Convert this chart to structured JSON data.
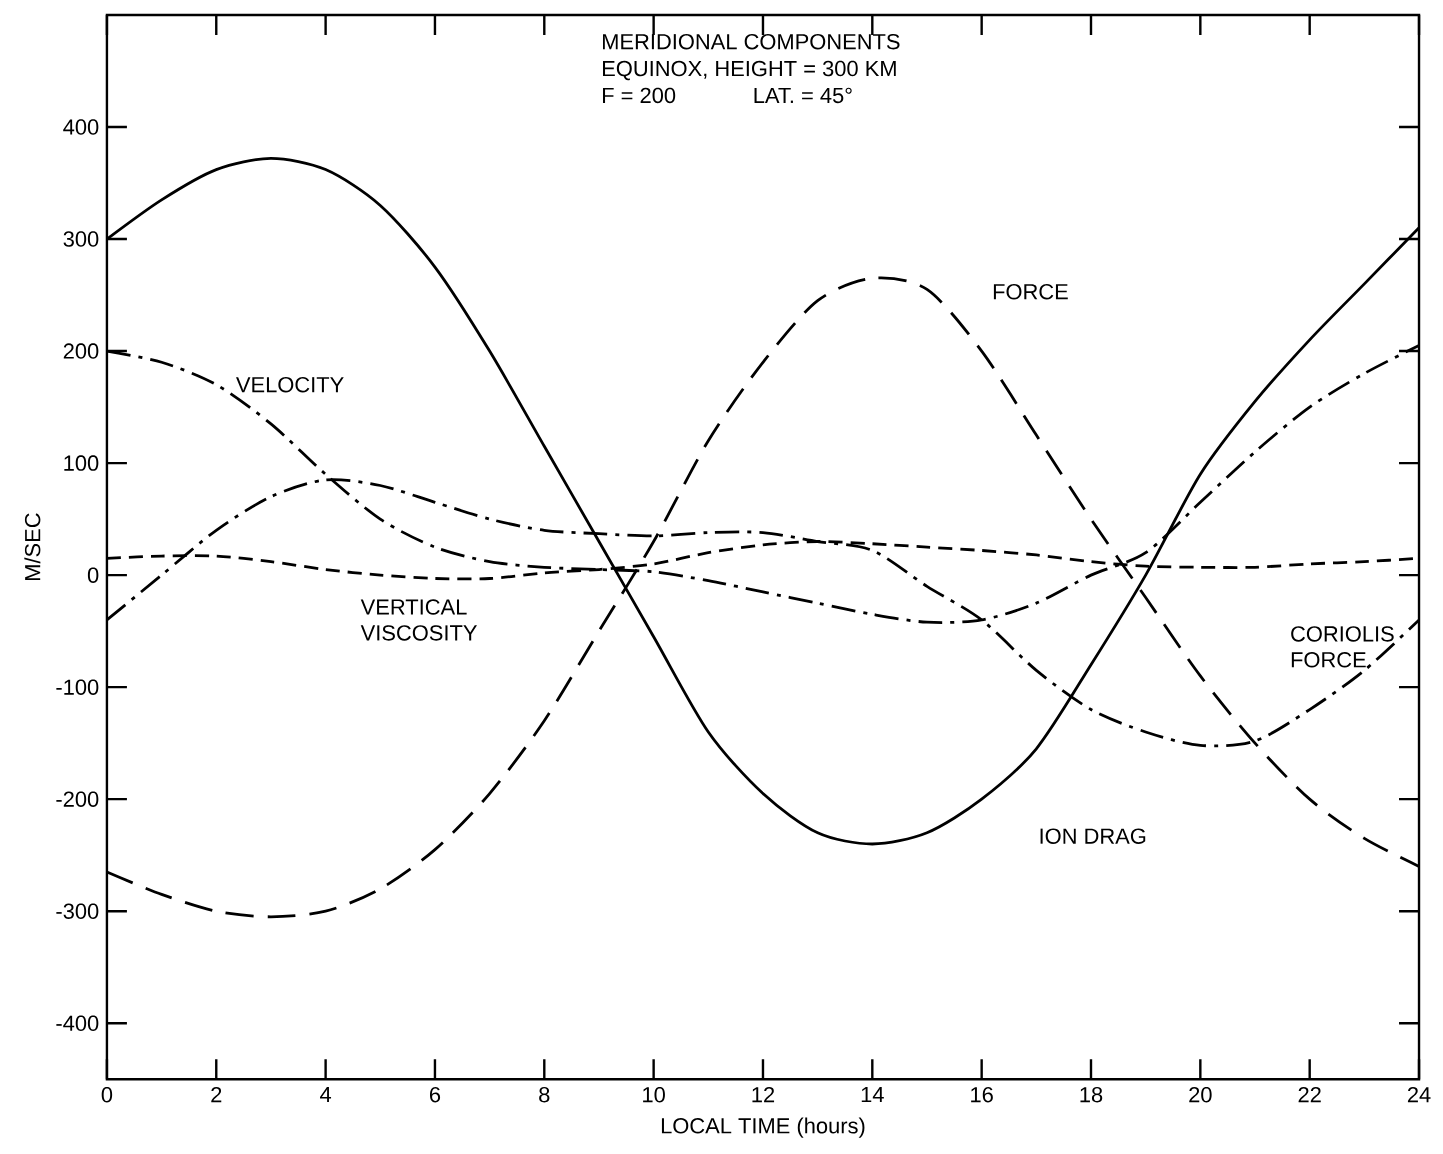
{
  "chart_data": {
    "type": "line",
    "title": "MERIDIONAL COMPONENTS",
    "subtitle": "EQUINOX, HEIGHT = 300 KM",
    "annotations": [
      "F = 200",
      "LAT. = 45°"
    ],
    "xlabel": "LOCAL TIME (hours)",
    "ylabel": "M/SEC",
    "x": [
      0,
      1,
      2,
      3,
      4,
      5,
      6,
      7,
      8,
      9,
      10,
      11,
      12,
      13,
      14,
      15,
      16,
      17,
      18,
      19,
      20,
      21,
      22,
      23,
      24
    ],
    "series": [
      {
        "name": "ION DRAG",
        "color": "#000000",
        "line_style": "solid",
        "values": [
          300,
          335,
          362,
          372,
          362,
          330,
          275,
          200,
          115,
          30,
          -55,
          -140,
          -195,
          -230,
          -240,
          -230,
          -200,
          -155,
          -80,
          0,
          90,
          155,
          210,
          260,
          310
        ]
      },
      {
        "name": "FORCE",
        "color": "#000000",
        "line_style": "dashed",
        "values": [
          -265,
          -285,
          -300,
          -305,
          -300,
          -280,
          -245,
          -195,
          -130,
          -50,
          30,
          120,
          190,
          245,
          265,
          255,
          200,
          125,
          50,
          -20,
          -90,
          -150,
          -200,
          -235,
          -260
        ]
      },
      {
        "name": "VELOCITY",
        "color": "#000000",
        "line_style": "dashdot",
        "values": [
          200,
          190,
          170,
          135,
          90,
          50,
          25,
          12,
          7,
          5,
          3,
          -5,
          -15,
          -25,
          -35,
          -42,
          -40,
          -25,
          0,
          20,
          65,
          110,
          150,
          180,
          205
        ]
      },
      {
        "name": "CORIOLIS FORCE",
        "color": "#000000",
        "line_style": "dashdot",
        "values": [
          -40,
          0,
          40,
          70,
          85,
          80,
          65,
          50,
          40,
          37,
          35,
          38,
          38,
          30,
          22,
          -10,
          -40,
          -85,
          -120,
          -140,
          -152,
          -148,
          -120,
          -85,
          -40
        ]
      },
      {
        "name": "VERTICAL VISCOSITY",
        "color": "#000000",
        "line_style": "short dashed",
        "values": [
          15,
          17,
          17,
          12,
          5,
          0,
          -3,
          -3,
          2,
          5,
          10,
          20,
          27,
          30,
          28,
          25,
          22,
          18,
          12,
          8,
          7,
          7,
          10,
          12,
          15
        ]
      }
    ],
    "xlim": [
      0,
      24
    ],
    "ylim": [
      -450,
      500
    ],
    "xticks": [
      0,
      2,
      4,
      6,
      8,
      10,
      12,
      14,
      16,
      18,
      20,
      22,
      24
    ],
    "yticks": [
      -400,
      -300,
      -200,
      -100,
      0,
      100,
      200,
      300,
      400
    ]
  }
}
